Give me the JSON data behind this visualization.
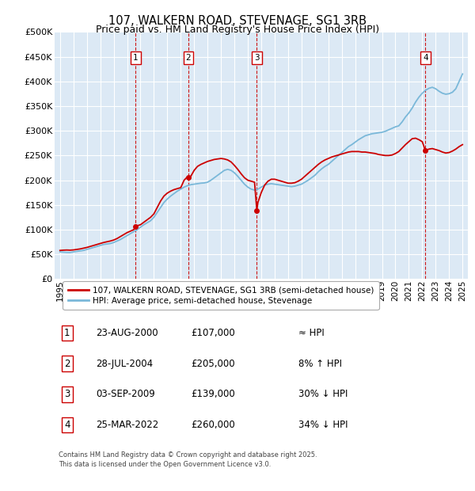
{
  "title": "107, WALKERN ROAD, STEVENAGE, SG1 3RB",
  "subtitle": "Price paid vs. HM Land Registry's House Price Index (HPI)",
  "ylim": [
    0,
    500000
  ],
  "yticks": [
    0,
    50000,
    100000,
    150000,
    200000,
    250000,
    300000,
    350000,
    400000,
    450000,
    500000
  ],
  "ytick_labels": [
    "£0",
    "£50K",
    "£100K",
    "£150K",
    "£200K",
    "£250K",
    "£300K",
    "£350K",
    "£400K",
    "£450K",
    "£500K"
  ],
  "xlim_start": 1994.6,
  "xlim_end": 2025.4,
  "background_color": "#ffffff",
  "plot_bg_color": "#dce9f5",
  "grid_color": "#ffffff",
  "sale_color": "#cc0000",
  "hpi_color": "#7ab8d9",
  "sales": [
    {
      "year": 2000.646,
      "price": 107000,
      "label": "1"
    },
    {
      "year": 2004.573,
      "price": 205000,
      "label": "2"
    },
    {
      "year": 2009.671,
      "price": 139000,
      "label": "3"
    },
    {
      "year": 2022.231,
      "price": 260000,
      "label": "4"
    }
  ],
  "legend_sale_label": "107, WALKERN ROAD, STEVENAGE, SG1 3RB (semi-detached house)",
  "legend_hpi_label": "HPI: Average price, semi-detached house, Stevenage",
  "table_rows": [
    {
      "num": "1",
      "date": "23-AUG-2000",
      "price": "£107,000",
      "rel": "≈ HPI"
    },
    {
      "num": "2",
      "date": "28-JUL-2004",
      "price": "£205,000",
      "rel": "8% ↑ HPI"
    },
    {
      "num": "3",
      "date": "03-SEP-2009",
      "price": "£139,000",
      "rel": "30% ↓ HPI"
    },
    {
      "num": "4",
      "date": "25-MAR-2022",
      "price": "£260,000",
      "rel": "34% ↓ HPI"
    }
  ],
  "footer": "Contains HM Land Registry data © Crown copyright and database right 2025.\nThis data is licensed under the Open Government Licence v3.0.",
  "hpi_data": [
    [
      1995.0,
      55000
    ],
    [
      1995.25,
      54500
    ],
    [
      1995.5,
      54000
    ],
    [
      1995.75,
      53800
    ],
    [
      1996.0,
      55000
    ],
    [
      1996.25,
      56000
    ],
    [
      1996.5,
      57000
    ],
    [
      1996.75,
      58000
    ],
    [
      1997.0,
      60000
    ],
    [
      1997.25,
      62000
    ],
    [
      1997.5,
      64000
    ],
    [
      1997.75,
      66000
    ],
    [
      1998.0,
      68000
    ],
    [
      1998.25,
      70000
    ],
    [
      1998.5,
      71000
    ],
    [
      1998.75,
      72000
    ],
    [
      1999.0,
      74000
    ],
    [
      1999.25,
      77000
    ],
    [
      1999.5,
      80000
    ],
    [
      1999.75,
      84000
    ],
    [
      2000.0,
      88000
    ],
    [
      2000.25,
      92000
    ],
    [
      2000.5,
      96000
    ],
    [
      2000.75,
      100000
    ],
    [
      2001.0,
      105000
    ],
    [
      2001.25,
      110000
    ],
    [
      2001.5,
      114000
    ],
    [
      2001.75,
      118000
    ],
    [
      2002.0,
      125000
    ],
    [
      2002.25,
      135000
    ],
    [
      2002.5,
      145000
    ],
    [
      2002.75,
      155000
    ],
    [
      2003.0,
      162000
    ],
    [
      2003.25,
      168000
    ],
    [
      2003.5,
      173000
    ],
    [
      2003.75,
      178000
    ],
    [
      2004.0,
      182000
    ],
    [
      2004.25,
      186000
    ],
    [
      2004.5,
      189000
    ],
    [
      2004.75,
      191000
    ],
    [
      2005.0,
      192000
    ],
    [
      2005.25,
      193000
    ],
    [
      2005.5,
      194000
    ],
    [
      2005.75,
      194500
    ],
    [
      2006.0,
      196000
    ],
    [
      2006.25,
      200000
    ],
    [
      2006.5,
      205000
    ],
    [
      2006.75,
      210000
    ],
    [
      2007.0,
      215000
    ],
    [
      2007.25,
      220000
    ],
    [
      2007.5,
      222000
    ],
    [
      2007.75,
      220000
    ],
    [
      2008.0,
      215000
    ],
    [
      2008.25,
      208000
    ],
    [
      2008.5,
      200000
    ],
    [
      2008.75,
      192000
    ],
    [
      2009.0,
      186000
    ],
    [
      2009.25,
      182000
    ],
    [
      2009.5,
      180000
    ],
    [
      2009.75,
      182000
    ],
    [
      2010.0,
      186000
    ],
    [
      2010.25,
      190000
    ],
    [
      2010.5,
      192000
    ],
    [
      2010.75,
      193000
    ],
    [
      2011.0,
      192000
    ],
    [
      2011.25,
      191000
    ],
    [
      2011.5,
      190000
    ],
    [
      2011.75,
      189000
    ],
    [
      2012.0,
      188000
    ],
    [
      2012.25,
      187000
    ],
    [
      2012.5,
      188000
    ],
    [
      2012.75,
      190000
    ],
    [
      2013.0,
      192000
    ],
    [
      2013.25,
      196000
    ],
    [
      2013.5,
      200000
    ],
    [
      2013.75,
      205000
    ],
    [
      2014.0,
      210000
    ],
    [
      2014.25,
      217000
    ],
    [
      2014.5,
      223000
    ],
    [
      2014.75,
      228000
    ],
    [
      2015.0,
      232000
    ],
    [
      2015.25,
      238000
    ],
    [
      2015.5,
      244000
    ],
    [
      2015.75,
      250000
    ],
    [
      2016.0,
      256000
    ],
    [
      2016.25,
      262000
    ],
    [
      2016.5,
      268000
    ],
    [
      2016.75,
      272000
    ],
    [
      2017.0,
      277000
    ],
    [
      2017.25,
      282000
    ],
    [
      2017.5,
      286000
    ],
    [
      2017.75,
      290000
    ],
    [
      2018.0,
      292000
    ],
    [
      2018.25,
      294000
    ],
    [
      2018.5,
      295000
    ],
    [
      2018.75,
      296000
    ],
    [
      2019.0,
      297000
    ],
    [
      2019.25,
      299000
    ],
    [
      2019.5,
      302000
    ],
    [
      2019.75,
      305000
    ],
    [
      2020.0,
      308000
    ],
    [
      2020.25,
      310000
    ],
    [
      2020.5,
      318000
    ],
    [
      2020.75,
      328000
    ],
    [
      2021.0,
      336000
    ],
    [
      2021.25,
      346000
    ],
    [
      2021.5,
      358000
    ],
    [
      2021.75,
      368000
    ],
    [
      2022.0,
      376000
    ],
    [
      2022.25,
      382000
    ],
    [
      2022.5,
      386000
    ],
    [
      2022.75,
      388000
    ],
    [
      2023.0,
      385000
    ],
    [
      2023.25,
      380000
    ],
    [
      2023.5,
      376000
    ],
    [
      2023.75,
      374000
    ],
    [
      2024.0,
      375000
    ],
    [
      2024.25,
      378000
    ],
    [
      2024.5,
      385000
    ],
    [
      2024.75,
      400000
    ],
    [
      2025.0,
      415000
    ]
  ],
  "price_data": [
    [
      1995.0,
      58000
    ],
    [
      1995.25,
      58500
    ],
    [
      1995.5,
      58800
    ],
    [
      1995.75,
      58500
    ],
    [
      1996.0,
      59000
    ],
    [
      1996.25,
      60000
    ],
    [
      1996.5,
      61000
    ],
    [
      1996.75,
      62500
    ],
    [
      1997.0,
      64000
    ],
    [
      1997.25,
      66000
    ],
    [
      1997.5,
      68000
    ],
    [
      1997.75,
      70000
    ],
    [
      1998.0,
      72000
    ],
    [
      1998.25,
      74000
    ],
    [
      1998.5,
      75500
    ],
    [
      1998.75,
      77000
    ],
    [
      1999.0,
      79000
    ],
    [
      1999.25,
      82000
    ],
    [
      1999.5,
      86000
    ],
    [
      1999.75,
      90000
    ],
    [
      2000.0,
      94000
    ],
    [
      2000.25,
      97000
    ],
    [
      2000.5,
      100000
    ],
    [
      2000.646,
      107000
    ],
    [
      2001.0,
      110000
    ],
    [
      2001.25,
      115000
    ],
    [
      2001.5,
      120000
    ],
    [
      2001.75,
      125000
    ],
    [
      2002.0,
      132000
    ],
    [
      2002.25,
      145000
    ],
    [
      2002.5,
      158000
    ],
    [
      2002.75,
      168000
    ],
    [
      2003.0,
      174000
    ],
    [
      2003.25,
      178000
    ],
    [
      2003.5,
      181000
    ],
    [
      2003.75,
      183000
    ],
    [
      2004.0,
      185000
    ],
    [
      2004.25,
      200000
    ],
    [
      2004.5,
      207000
    ],
    [
      2004.573,
      205000
    ],
    [
      2004.75,
      208000
    ],
    [
      2005.0,
      220000
    ],
    [
      2005.25,
      228000
    ],
    [
      2005.5,
      232000
    ],
    [
      2005.75,
      235000
    ],
    [
      2006.0,
      238000
    ],
    [
      2006.25,
      240000
    ],
    [
      2006.5,
      242000
    ],
    [
      2006.75,
      243000
    ],
    [
      2007.0,
      244000
    ],
    [
      2007.25,
      243000
    ],
    [
      2007.5,
      241000
    ],
    [
      2007.75,
      237000
    ],
    [
      2008.0,
      230000
    ],
    [
      2008.25,
      222000
    ],
    [
      2008.5,
      213000
    ],
    [
      2008.75,
      205000
    ],
    [
      2009.0,
      200000
    ],
    [
      2009.25,
      198000
    ],
    [
      2009.5,
      196000
    ],
    [
      2009.671,
      139000
    ],
    [
      2009.75,
      155000
    ],
    [
      2010.0,
      175000
    ],
    [
      2010.25,
      190000
    ],
    [
      2010.5,
      198000
    ],
    [
      2010.75,
      202000
    ],
    [
      2011.0,
      202000
    ],
    [
      2011.25,
      200000
    ],
    [
      2011.5,
      198000
    ],
    [
      2011.75,
      196000
    ],
    [
      2012.0,
      194000
    ],
    [
      2012.25,
      194000
    ],
    [
      2012.5,
      195000
    ],
    [
      2012.75,
      198000
    ],
    [
      2013.0,
      202000
    ],
    [
      2013.25,
      208000
    ],
    [
      2013.5,
      214000
    ],
    [
      2013.75,
      220000
    ],
    [
      2014.0,
      226000
    ],
    [
      2014.25,
      232000
    ],
    [
      2014.5,
      237000
    ],
    [
      2014.75,
      241000
    ],
    [
      2015.0,
      244000
    ],
    [
      2015.25,
      247000
    ],
    [
      2015.5,
      249000
    ],
    [
      2015.75,
      251000
    ],
    [
      2016.0,
      253000
    ],
    [
      2016.25,
      255000
    ],
    [
      2016.5,
      257000
    ],
    [
      2016.75,
      258000
    ],
    [
      2017.0,
      258000
    ],
    [
      2017.25,
      258000
    ],
    [
      2017.5,
      257000
    ],
    [
      2017.75,
      257000
    ],
    [
      2018.0,
      256000
    ],
    [
      2018.25,
      255000
    ],
    [
      2018.5,
      254000
    ],
    [
      2018.75,
      252000
    ],
    [
      2019.0,
      251000
    ],
    [
      2019.25,
      250000
    ],
    [
      2019.5,
      250000
    ],
    [
      2019.75,
      251000
    ],
    [
      2020.0,
      254000
    ],
    [
      2020.25,
      258000
    ],
    [
      2020.5,
      265000
    ],
    [
      2020.75,
      272000
    ],
    [
      2021.0,
      278000
    ],
    [
      2021.25,
      284000
    ],
    [
      2021.5,
      285000
    ],
    [
      2021.75,
      282000
    ],
    [
      2022.0,
      278000
    ],
    [
      2022.231,
      260000
    ],
    [
      2022.5,
      263000
    ],
    [
      2022.75,
      264000
    ],
    [
      2023.0,
      262000
    ],
    [
      2023.25,
      260000
    ],
    [
      2023.5,
      257000
    ],
    [
      2023.75,
      255000
    ],
    [
      2024.0,
      256000
    ],
    [
      2024.25,
      259000
    ],
    [
      2024.5,
      263000
    ],
    [
      2024.75,
      268000
    ],
    [
      2025.0,
      272000
    ]
  ]
}
